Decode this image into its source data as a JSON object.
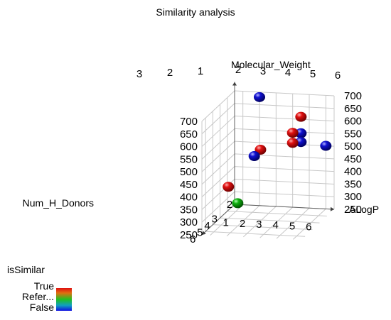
{
  "chart_data": {
    "type": "scatter",
    "chart_kind": "3d-scatter",
    "title": "Similarity analysis",
    "axes": {
      "x": {
        "label": "ALogP",
        "ticks": [
          1,
          2,
          3,
          4,
          5,
          6
        ],
        "range": [
          0.5,
          6.5
        ]
      },
      "y": {
        "label": "Num_H_Donors",
        "ticks": [
          2,
          3,
          4,
          5,
          6
        ],
        "range": [
          2,
          6.5
        ]
      },
      "z": {
        "label": "Molecular_Weight",
        "ticks": [
          250,
          300,
          350,
          400,
          450,
          500,
          550,
          600,
          650,
          700
        ],
        "range": [
          250,
          700
        ]
      },
      "back_y_ticks": [
        3,
        2,
        1
      ],
      "back_x_ticks": [
        2,
        3,
        4,
        5,
        6
      ]
    },
    "color_legend": {
      "title": "isSimilar",
      "labels": [
        "True",
        "Refer...",
        "False"
      ],
      "colors": {
        "True": "#d01010",
        "Reference": "#10b010",
        "False": "#1010c8"
      }
    },
    "points": [
      {
        "alogp": 2.0,
        "hdonors": 2.0,
        "mw": 680,
        "class": "False"
      },
      {
        "alogp": 2.5,
        "hdonors": 3.0,
        "mw": 500,
        "class": "True"
      },
      {
        "alogp": 1.0,
        "hdonors": 4.0,
        "mw": 375,
        "class": "True"
      },
      {
        "alogp": 2.0,
        "hdonors": 5.0,
        "mw": 340,
        "class": "Reference"
      },
      {
        "alogp": 3.0,
        "hdonors": 5.0,
        "mw": 530,
        "class": "False"
      },
      {
        "alogp": 4.5,
        "hdonors": 2.0,
        "mw": 610,
        "class": "True"
      },
      {
        "alogp": 4.0,
        "hdonors": 2.0,
        "mw": 545,
        "class": "True"
      },
      {
        "alogp": 4.5,
        "hdonors": 2.0,
        "mw": 545,
        "class": "False"
      },
      {
        "alogp": 4.0,
        "hdonors": 2.0,
        "mw": 505,
        "class": "True"
      },
      {
        "alogp": 4.5,
        "hdonors": 2.0,
        "mw": 510,
        "class": "False"
      },
      {
        "alogp": 6.0,
        "hdonors": 2.0,
        "mw": 500,
        "class": "False"
      }
    ],
    "grid": true
  }
}
